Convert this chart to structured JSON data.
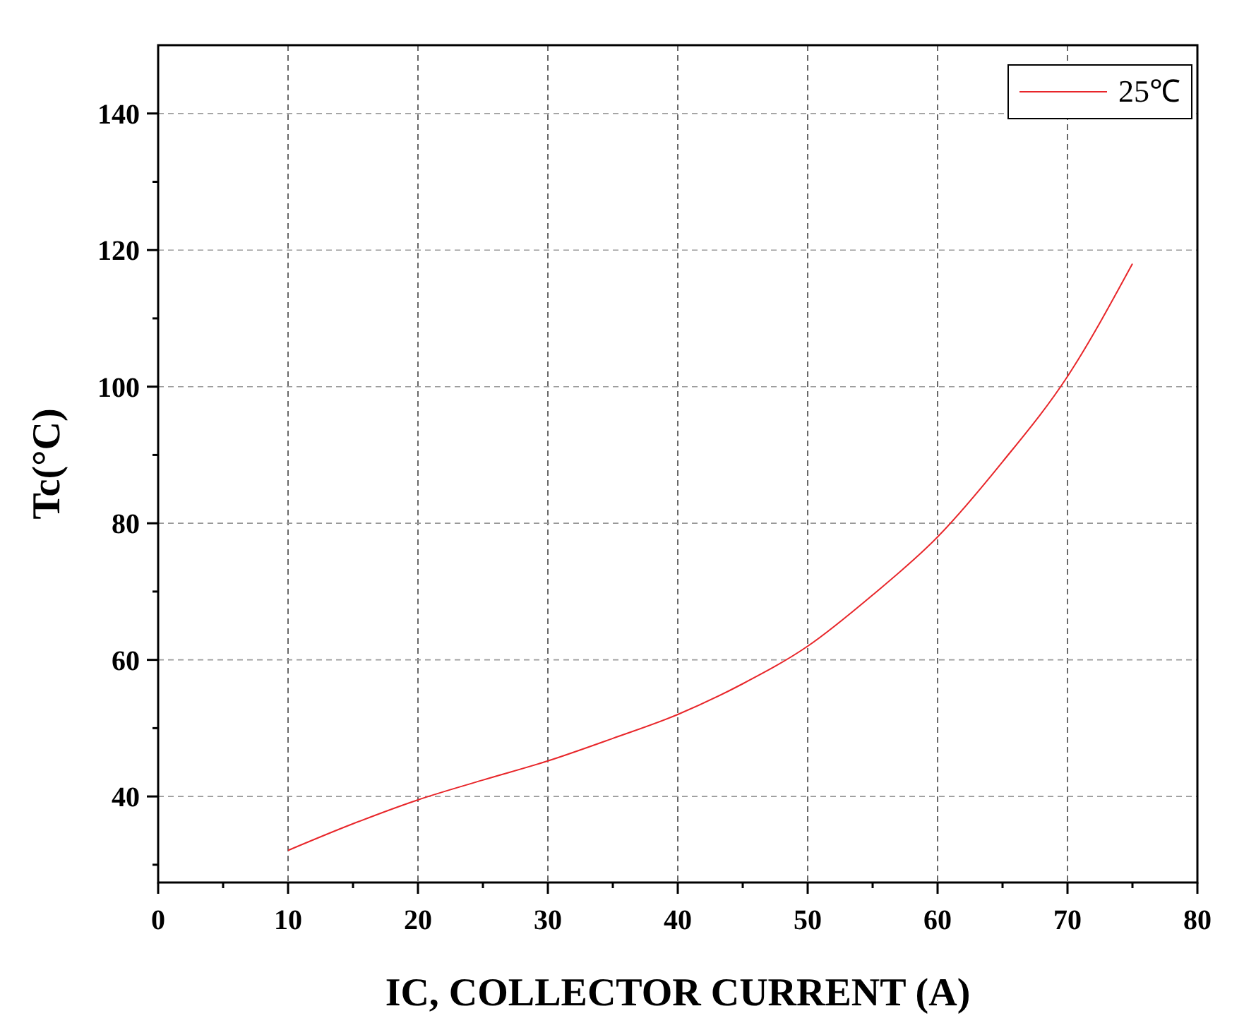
{
  "chart_data": {
    "type": "line",
    "xlabel": "IC, COLLECTOR CURRENT (A)",
    "ylabel": "Tc(°C)",
    "xlim": [
      0,
      80
    ],
    "ylim": [
      27.4,
      150
    ],
    "xticks": [
      0,
      {
        "value": 5,
        "label": null
      },
      10,
      {
        "value": 15,
        "label": null
      },
      20,
      {
        "value": 25,
        "label": null
      },
      30,
      {
        "value": 35,
        "label": null
      },
      40,
      {
        "value": 45,
        "label": null
      },
      50,
      {
        "value": 55,
        "label": null
      },
      60,
      {
        "value": 65,
        "label": null
      },
      70,
      {
        "value": 75,
        "label": null
      },
      80
    ],
    "yticks": [
      {
        "value": 30,
        "label": null
      },
      40,
      {
        "value": 50,
        "label": null
      },
      60,
      {
        "value": 70,
        "label": null
      },
      80,
      {
        "value": 90,
        "label": null
      },
      100,
      {
        "value": 110,
        "label": null
      },
      120,
      {
        "value": 130,
        "label": null
      },
      140
    ],
    "grid": true,
    "legend": "top right",
    "line_style": "solid",
    "series": [
      {
        "name": "25℃",
        "color": "#e8262a",
        "x": [
          10,
          15,
          20,
          25,
          30,
          35,
          40,
          45,
          50,
          55,
          60,
          65,
          70,
          75
        ],
        "values": [
          32.1,
          36,
          39.5,
          42.4,
          45.2,
          48.5,
          52,
          56.5,
          62,
          69.5,
          78,
          89,
          101.5,
          118
        ]
      }
    ]
  }
}
